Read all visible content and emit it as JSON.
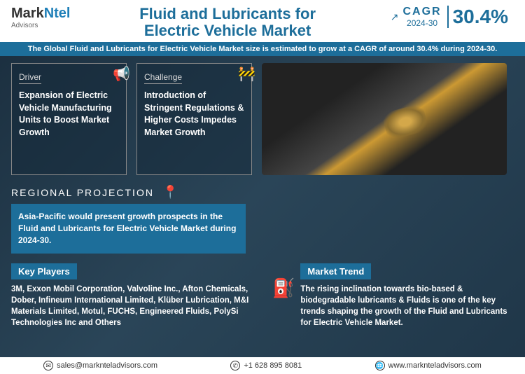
{
  "logo": {
    "mark": "Mark",
    "ntel": "Ntel",
    "advisors": "Advisors"
  },
  "title_line1": "Fluid and Lubricants for",
  "title_line2": "Electric Vehicle Market",
  "cagr": {
    "label_top": "CAGR",
    "label_period": "2024-30",
    "value": "30.4%"
  },
  "subtitle": "The Global Fluid and Lubricants for Electric Vehicle Market size is estimated to grow at a CAGR of around 30.4% during 2024-30.",
  "driver": {
    "label": "Driver",
    "text": "Expansion of Electric Vehicle Manufacturing Units to Boost Market Growth"
  },
  "challenge": {
    "label": "Challenge",
    "text": "Introduction of Stringent Regulations & Higher Costs Impedes Market Growth"
  },
  "regional": {
    "title": "REGIONAL PROJECTION",
    "text": "Asia-Pacific would present growth prospects in the Fluid and Lubricants for Electric Vehicle Market during 2024-30."
  },
  "key_players": {
    "title": "Key Players",
    "text": "3M, Exxon Mobil Corporation, Valvoline Inc., Afton Chemicals, Dober, Infineum International Limited, Klüber Lubrication, M&I Materials Limited, Motul, FUCHS, Engineered Fluids, PolySi Technologies Inc and Others"
  },
  "market_trend": {
    "title": "Market Trend",
    "text": "The rising inclination towards bio-based & biodegradable lubricants & Fluids is one of the key trends shaping the growth of the Fluid and Lubricants for Electric Vehicle Market."
  },
  "footer": {
    "email": "sales@marknteladvisors.com",
    "phone": "+1 628 895 8081",
    "web": "www.marknteladvisors.com"
  },
  "colors": {
    "brand_blue": "#1d6e9a",
    "brand_orange": "#ff8c00",
    "bg_dark1": "#1a2d3d",
    "bg_dark2": "#2a4558"
  }
}
